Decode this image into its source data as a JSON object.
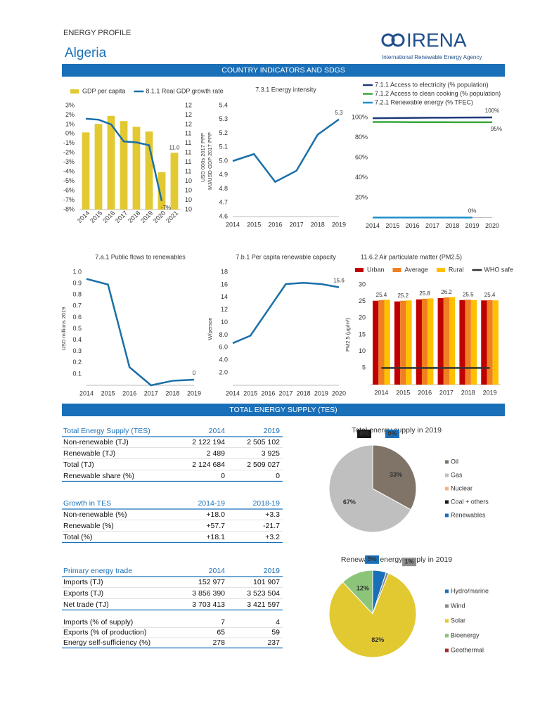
{
  "header": {
    "title": "ENERGY PROFILE",
    "country": "Algeria",
    "logo": "IRENA",
    "agency": "International Renewable Energy Agency"
  },
  "sections": [
    "COUNTRY INDICATORS AND SDGS",
    "TOTAL ENERGY SUPPLY (TES)"
  ],
  "chart_data": [
    {
      "type": "bar",
      "categories": [
        "2014",
        "2015",
        "2016",
        "2017",
        "2018",
        "2019",
        "2020",
        "2021"
      ],
      "series": [
        {
          "name": "GDP per capita",
          "type": "bar",
          "axis": "y2",
          "color": "#e2c931",
          "values": [
            11.43,
            11.61,
            11.78,
            11.67,
            11.55,
            11.45,
            10.59,
            11.0
          ],
          "value_labels": [
            null,
            null,
            null,
            null,
            null,
            null,
            null,
            "11.0"
          ]
        },
        {
          "name": "8.1.1 Real GDP growth rate",
          "type": "line",
          "color": "#1a6fa8",
          "values": [
            1.6,
            1.5,
            1.0,
            -0.8,
            -0.9,
            -1.2,
            -7.1,
            null
          ],
          "value_labels": [
            null,
            null,
            null,
            null,
            null,
            null,
            "-7%",
            null
          ]
        }
      ],
      "ylim": [
        -8,
        3
      ],
      "yticks": [
        {
          "value": 3,
          "label": "3%"
        },
        {
          "value": 2,
          "label": "2%"
        },
        {
          "value": 1,
          "label": "1%"
        },
        {
          "value": 0,
          "label": "0%"
        },
        {
          "value": -1,
          "label": "-1%"
        },
        {
          "value": -2,
          "label": "-2%"
        },
        {
          "value": -3,
          "label": "-3%"
        },
        {
          "value": -4,
          "label": "-4%"
        },
        {
          "value": -5,
          "label": "-5%"
        },
        {
          "value": -6,
          "label": "-6%"
        },
        {
          "value": -7,
          "label": "-7%"
        },
        {
          "value": -8,
          "label": "-8%"
        }
      ],
      "y2lim": [
        9.8,
        12.0
      ],
      "y2ticks": [
        12,
        {
          "value": 11.8,
          "label": "12"
        },
        {
          "value": 11.6,
          "label": "12"
        },
        {
          "value": 11.4,
          "label": "11"
        },
        {
          "value": 11.2,
          "label": "11"
        },
        11,
        {
          "value": 10.8,
          "label": "11"
        },
        {
          "value": 10.6,
          "label": "11"
        },
        {
          "value": 10.4,
          "label": "10"
        },
        {
          "value": 10.2,
          "label": "10"
        },
        10,
        {
          "value": 9.8,
          "label": "10"
        }
      ],
      "y2label": "USD 000s 2017 PPP",
      "legend": "top"
    },
    {
      "type": "line",
      "title": "7.3.1 Energy intensity",
      "ylabel": "MJ/USD GDP 2017 PPP",
      "x": [
        2014,
        2015,
        2016,
        2017,
        2018,
        2019
      ],
      "xlim": [
        2014,
        2019
      ],
      "xticks": [
        2014,
        2015,
        2016,
        2017,
        2018,
        2019
      ],
      "ylim": [
        4.6,
        5.4
      ],
      "yticks": [
        4.6,
        4.7,
        4.8,
        4.9,
        {
          "value": 5,
          "label": "5.0"
        },
        5.1,
        5.2,
        5.3,
        5.4
      ],
      "series": [
        {
          "color": "#1a6fa8",
          "values": [
            5.0,
            5.05,
            4.85,
            4.93,
            5.19,
            5.3
          ],
          "value_labels": [
            null,
            null,
            null,
            null,
            null,
            "5.3"
          ]
        }
      ]
    },
    {
      "type": "line",
      "x": [
        2014,
        2015,
        2016,
        2017,
        2018,
        2019,
        2020
      ],
      "xlim": [
        2014,
        2020
      ],
      "xticks": [
        2014,
        2015,
        2016,
        2017,
        2018,
        2019,
        2020
      ],
      "ylim": [
        0,
        100
      ],
      "yticks": [
        {
          "value": 20,
          "label": "20%"
        },
        {
          "value": 40,
          "label": "40%"
        },
        {
          "value": 60,
          "label": "60%"
        },
        {
          "value": 80,
          "label": "80%"
        },
        {
          "value": 100,
          "label": "100%"
        }
      ],
      "series": [
        {
          "name": "7.1.1 Access to electricity (% population)",
          "color": "#1f3a7a",
          "values": [
            99.2,
            99.4,
            99.6,
            99.7,
            99.8,
            99.9,
            100
          ],
          "value_labels": [
            null,
            null,
            null,
            null,
            null,
            null,
            "100%"
          ]
        },
        {
          "name": "7.1.2 Access to clean cooking (% population)",
          "color": "#3aa63a",
          "values": [
            95.4,
            95.4,
            95.3,
            95.3,
            95.2,
            95.2,
            95.2
          ],
          "value_labels": [
            null,
            null,
            null,
            null,
            null,
            null,
            "95%"
          ]
        },
        {
          "name": "7.2.1 Renewable energy (% TFEC)",
          "color": "#1f8fc8",
          "values": [
            0.1,
            0.1,
            0.1,
            0.1,
            0.1,
            0.1,
            null
          ],
          "value_labels": [
            null,
            null,
            null,
            null,
            null,
            "0%",
            null
          ]
        }
      ],
      "legend": "top"
    },
    {
      "type": "line",
      "title": "7.a.1 Public flows to renewables",
      "ylabel": "USD millions 2019",
      "x": [
        2014,
        2015,
        2016,
        2017,
        2018,
        2019
      ],
      "xlim": [
        2014,
        2019
      ],
      "xticks": [
        2014,
        2015,
        2016,
        2017,
        2018,
        2019
      ],
      "ylim": [
        0,
        1
      ],
      "yticks": [
        0.1,
        0.2,
        0.3,
        0.4,
        0.5,
        0.6,
        0.7,
        0.8,
        0.9,
        {
          "value": 1,
          "label": "1.0"
        }
      ],
      "series": [
        {
          "color": "#1a6fa8",
          "values": [
            0.94,
            0.89,
            0.16,
            0.0,
            0.04,
            0.05
          ],
          "value_labels": [
            null,
            null,
            null,
            null,
            null,
            "0"
          ]
        }
      ]
    },
    {
      "type": "line",
      "title": "7.b.1 Per capita renewable capacity",
      "ylabel": "W/person",
      "x": [
        2014,
        2015,
        2016,
        2017,
        2018,
        2019,
        2020
      ],
      "xlim": [
        2014,
        2020
      ],
      "xticks": [
        2014,
        2015,
        2016,
        2017,
        2018,
        2019,
        2020
      ],
      "ylim": [
        0,
        18
      ],
      "yticks": [
        {
          "value": 2,
          "label": "2.0"
        },
        {
          "value": 4,
          "label": "4.0"
        },
        {
          "value": 6,
          "label": "6.0"
        },
        {
          "value": 8,
          "label": "8.0"
        },
        10,
        12,
        14,
        16,
        18
      ],
      "series": [
        {
          "color": "#1a6fa8",
          "values": [
            6.7,
            7.9,
            12.0,
            16.1,
            16.3,
            16.1,
            15.6
          ],
          "value_labels": [
            null,
            null,
            null,
            null,
            null,
            null,
            "15.6"
          ]
        }
      ]
    },
    {
      "type": "bar",
      "title": "11.6.2 Air particulate matter (PM2.5)",
      "ylabel": "PM2.5 (µg/m³)",
      "categories": [
        "2014",
        "2015",
        "2016",
        "2017",
        "2018",
        "2019"
      ],
      "ylim": [
        0,
        30
      ],
      "yticks": [
        5,
        10,
        15,
        20,
        25,
        30
      ],
      "series": [
        {
          "name": "Urban",
          "type": "bar",
          "color": "#c00000",
          "values": [
            25.2,
            25.0,
            25.6,
            26.0,
            25.4,
            25.3
          ]
        },
        {
          "name": "Average",
          "type": "bar",
          "color": "#f07f22",
          "values": [
            25.4,
            25.2,
            25.8,
            26.2,
            25.5,
            25.4
          ],
          "value_labels": [
            "25.4",
            "25.2",
            "25.8",
            "26.2",
            "25.5",
            "25.4"
          ]
        },
        {
          "name": "Rural",
          "type": "bar",
          "color": "#ffc000",
          "values": [
            25.5,
            25.3,
            25.9,
            26.3,
            25.4,
            25.3
          ]
        },
        {
          "name": "WHO safe",
          "type": "line",
          "color": "#333333",
          "values": [
            5,
            5,
            5,
            5,
            5,
            5
          ]
        }
      ],
      "legend": "top"
    },
    {
      "type": "pie",
      "title": "Total energy supply in 2019",
      "categories": [
        "Oil",
        "Gas",
        "Nuclear",
        "Coal + others",
        "Renewables"
      ],
      "values": [
        33,
        67,
        0,
        0,
        0
      ],
      "value_labels": [
        "33%",
        "67%",
        null,
        "0%",
        "0%"
      ],
      "colors": [
        "#7f7467",
        "#bfbfbf",
        "#f4b183",
        "#1a1a1a",
        "#1a70b8"
      ],
      "legend": "right"
    },
    {
      "type": "pie",
      "title": "Renewable energy supply in 2019",
      "categories": [
        "Hydro/marine",
        "Wind",
        "Solar",
        "Bioenergy",
        "Geothermal"
      ],
      "values": [
        5,
        1,
        82,
        12,
        0
      ],
      "value_labels": [
        "5%",
        "1%",
        "82%",
        "12%",
        null
      ],
      "colors": [
        "#1a70b8",
        "#8c8c8c",
        "#e2c931",
        "#8cc57a",
        "#a52a2a"
      ],
      "legend": "right"
    }
  ],
  "tables": [
    {
      "header": [
        "Total Energy Supply (TES)",
        "2014",
        "2019"
      ],
      "rows": [
        [
          "Non-renewable (TJ)",
          "2 122 194",
          "2 505 102"
        ],
        [
          "Renewable (TJ)",
          "2 489",
          "3 925"
        ],
        [
          "Total (TJ)",
          "2 124 684",
          "2 509 027"
        ],
        [
          "Renewable share (%)",
          "0",
          "0"
        ]
      ]
    },
    {
      "header": [
        "Growth in TES",
        "2014-19",
        "2018-19"
      ],
      "rows": [
        [
          "Non-renewable (%)",
          "+18.0",
          "+3.3"
        ],
        [
          "Renewable (%)",
          "+57.7",
          "-21.7"
        ],
        [
          "Total (%)",
          "+18.1",
          "+3.2"
        ]
      ]
    },
    {
      "header": [
        "Primary energy trade",
        "2014",
        "2019"
      ],
      "rows": [
        [
          "Imports (TJ)",
          "152 977",
          "101 907"
        ],
        [
          "Exports (TJ)",
          "3 856 390",
          "3 523 504"
        ],
        [
          "Net trade (TJ)",
          "3 703 413",
          "3 421 597"
        ]
      ]
    },
    {
      "rows": [
        [
          "Imports (% of supply)",
          "7",
          "4"
        ],
        [
          "Exports (% of production)",
          "65",
          "59"
        ],
        [
          "Energy self-sufficiency (%)",
          "278",
          "237"
        ]
      ]
    }
  ]
}
